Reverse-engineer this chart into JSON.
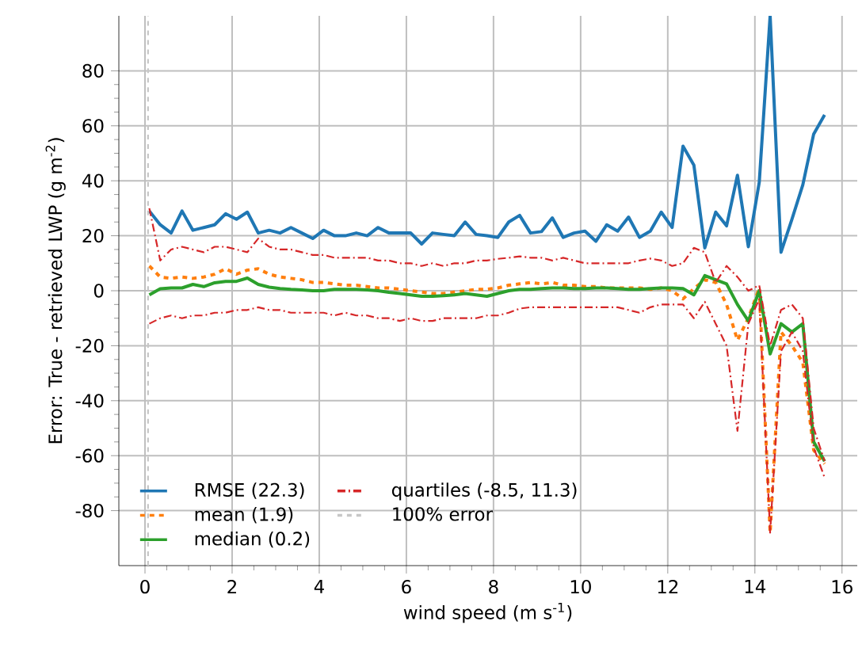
{
  "chart_data": {
    "type": "line",
    "xlabel": "wind speed (m s$^{-1}$)",
    "ylabel": "Error: True - retrieved LWP (g m$^{-2}$)",
    "x": [
      0.1,
      0.35,
      0.6,
      0.85,
      1.1,
      1.35,
      1.6,
      1.85,
      2.1,
      2.35,
      2.6,
      2.85,
      3.1,
      3.35,
      3.6,
      3.85,
      4.1,
      4.35,
      4.6,
      4.85,
      5.1,
      5.35,
      5.6,
      5.85,
      6.1,
      6.35,
      6.6,
      6.85,
      7.1,
      7.35,
      7.6,
      7.85,
      8.1,
      8.35,
      8.6,
      8.85,
      9.1,
      9.35,
      9.6,
      9.85,
      10.1,
      10.35,
      10.6,
      10.85,
      11.1,
      11.35,
      11.6,
      11.85,
      12.1,
      12.35,
      12.6,
      12.85,
      13.1,
      13.35,
      13.6,
      13.85,
      14.1,
      14.35,
      14.6,
      14.85,
      15.1,
      15.35,
      15.6
    ],
    "series": [
      {
        "name": "RMSE (22.3)",
        "color": "#1f77b4",
        "line_style": "solid",
        "values": [
          29,
          24,
          21,
          29,
          22,
          23,
          24,
          28,
          26,
          28.6,
          21,
          22,
          21,
          23,
          21,
          19,
          22,
          20,
          20,
          21,
          20,
          23,
          21,
          21,
          21,
          17,
          21,
          20.5,
          20,
          25,
          20.5,
          20,
          19.4,
          25,
          27.4,
          21,
          21.5,
          26.5,
          19.4,
          21,
          21.7,
          18,
          24,
          21.7,
          26.8,
          19.4,
          21.7,
          28.6,
          23,
          52.6,
          45.7,
          15.6,
          28.6,
          23.6,
          42,
          16,
          39.4,
          100,
          14,
          26,
          38.5,
          57,
          64
        ]
      },
      {
        "name": "mean (1.9)",
        "color": "#ff7f0e",
        "line_style": "dashed",
        "values": [
          9,
          5,
          4.5,
          5,
          4.5,
          5,
          6,
          8,
          6,
          7.5,
          8,
          6,
          5,
          4.5,
          4,
          3,
          3,
          2.5,
          2,
          2,
          1.5,
          1,
          1,
          0.5,
          0,
          -0.5,
          -1,
          -1,
          -0.5,
          0,
          0.5,
          0.5,
          1,
          2,
          2.5,
          3,
          2.5,
          3,
          2,
          2,
          1.5,
          1.5,
          1,
          1,
          1,
          1,
          0.5,
          1,
          0,
          -3,
          0.8,
          4,
          3,
          -5,
          -18,
          -10,
          1,
          -88,
          -15,
          -20,
          -26,
          -58,
          -63
        ]
      },
      {
        "name": "median (0.2)",
        "color": "#2ca02c",
        "line_style": "solid",
        "values": [
          -1.5,
          0.7,
          1,
          1,
          2.3,
          1.5,
          2.9,
          3.4,
          3.4,
          4.6,
          2.3,
          1.3,
          0.8,
          0.5,
          0.3,
          0,
          0,
          0.5,
          0.5,
          0.5,
          0.3,
          0,
          -0.6,
          -1,
          -1.5,
          -2,
          -2,
          -1.8,
          -1.5,
          -1,
          -1.5,
          -2,
          -1,
          0,
          0.5,
          0.5,
          0.8,
          1,
          1,
          0.8,
          0.8,
          1,
          1,
          0.8,
          0.5,
          0.5,
          0.8,
          1,
          1,
          0.8,
          -1.5,
          5.5,
          4,
          2.5,
          -5,
          -11,
          0,
          -23,
          -12,
          -15,
          -12,
          -55,
          -62
        ]
      },
      {
        "name": "quartiles (-8.5, 11.3)",
        "color": "#d62728",
        "line_style": "dashdot",
        "values": [
          -12,
          -10,
          -9,
          -10,
          -9,
          -9,
          -8,
          -8,
          -7,
          -7,
          -6,
          -7,
          -7,
          -8,
          -8,
          -8,
          -8,
          -9,
          -8,
          -9,
          -9,
          -10,
          -10,
          -11,
          -10,
          -11,
          -11,
          -10,
          -10,
          -10,
          -10,
          -9,
          -9,
          -8,
          -6.5,
          -6,
          -6,
          -6,
          -6,
          -6,
          -6,
          -6,
          -6,
          -6,
          -7,
          -8,
          -6,
          -5,
          -5,
          -5,
          -10,
          -4,
          -12,
          -20,
          -51,
          -12,
          -3,
          -88,
          -22,
          -15,
          -22,
          -57,
          -68
        ]
      },
      {
        "color": "#d62728",
        "line_style": "dashdot",
        "values": [
          30,
          11,
          15,
          16,
          15,
          14,
          16,
          16,
          15,
          14,
          19,
          16,
          15,
          15,
          14,
          13,
          13,
          12,
          12,
          12,
          12,
          11,
          11,
          10,
          10,
          9,
          10,
          9,
          10,
          10,
          11,
          11,
          11.6,
          12,
          12.5,
          12,
          12,
          11,
          12,
          11,
          10,
          10,
          10,
          10,
          10,
          11,
          11.7,
          11,
          9,
          10,
          15.6,
          14,
          3,
          9,
          5,
          0,
          2,
          -20,
          -7,
          -5,
          -10,
          -50,
          -62
        ]
      },
      {
        "name": "100% error",
        "color": "#c7c7c7",
        "line_style": "dashed",
        "x": [
          0.07,
          0.07
        ],
        "values": [
          -100,
          100
        ]
      }
    ],
    "xlim": [
      -0.6,
      16.35
    ],
    "ylim": [
      -100,
      100
    ],
    "xticks": [
      0,
      2,
      4,
      6,
      8,
      10,
      12,
      14,
      16
    ],
    "yticks": [
      -80,
      -60,
      -40,
      -20,
      0,
      20,
      40,
      60,
      80
    ],
    "grid": true,
    "legend": "bottom left"
  }
}
